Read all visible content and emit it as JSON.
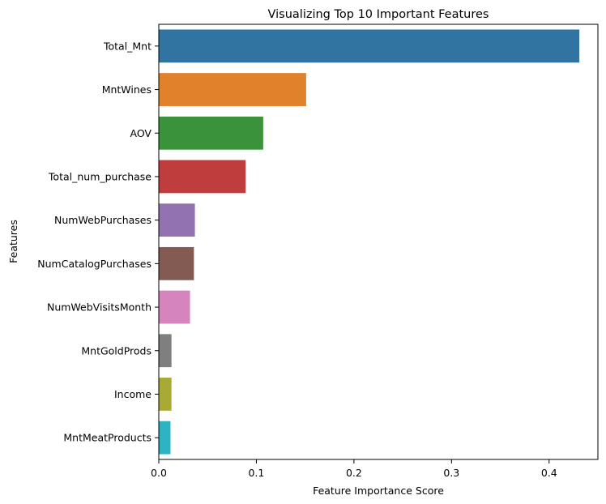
{
  "chart_data": {
    "type": "bar",
    "orientation": "horizontal",
    "title": "Visualizing Top 10 Important Features",
    "xlabel": "Feature Importance Score",
    "ylabel": "Features",
    "xlim": [
      0,
      0.45
    ],
    "xticks": [
      0.0,
      0.1,
      0.2,
      0.3,
      0.4
    ],
    "xtick_labels": [
      "0.0",
      "0.1",
      "0.2",
      "0.3",
      "0.4"
    ],
    "grid": false,
    "categories": [
      "Total_Mnt",
      "MntWines",
      "AOV",
      "Total_num_purchase",
      "NumWebPurchases",
      "NumCatalogPurchases",
      "NumWebVisitsMonth",
      "MntGoldProds",
      "Income",
      "MntMeatProducts"
    ],
    "values": [
      0.431,
      0.151,
      0.107,
      0.089,
      0.037,
      0.036,
      0.032,
      0.013,
      0.013,
      0.012
    ],
    "colors": [
      "#3274a1",
      "#e1812c",
      "#3a923a",
      "#c03d3e",
      "#9372b2",
      "#845b53",
      "#d684bd",
      "#7f7f7f",
      "#a9aa35",
      "#2eb3c2"
    ]
  }
}
